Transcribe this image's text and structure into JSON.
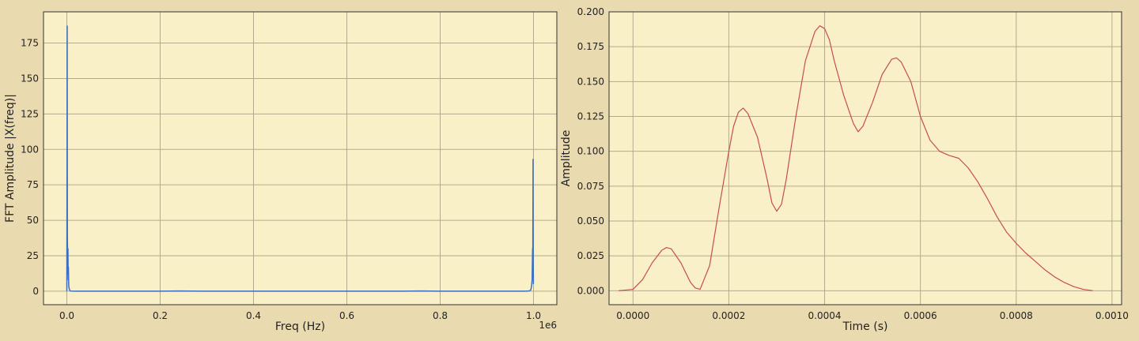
{
  "colors": {
    "figure_bg": "#e9dab0",
    "axes_bg": "#faf0c8",
    "grid": "#b3ab8c",
    "spine": "#333333",
    "fft_line": "#3c6fc4",
    "time_line": "#c44e52"
  },
  "chart_data": [
    {
      "type": "line",
      "xlabel": "Freq (Hz)",
      "ylabel": "FFT Amplitude |X(freq)|",
      "x_offset_label": "1e6",
      "grid": true,
      "xlim": [
        -0.05,
        1.05
      ],
      "ylim": [
        -9.5,
        197
      ],
      "xticks": [
        0.0,
        0.2,
        0.4,
        0.6,
        0.8,
        1.0
      ],
      "xtick_labels": [
        "0.0",
        "0.2",
        "0.4",
        "0.6",
        "0.8",
        "1.0"
      ],
      "yticks": [
        0,
        25,
        50,
        75,
        100,
        125,
        150,
        175
      ],
      "ytick_labels": [
        "0",
        "25",
        "50",
        "75",
        "100",
        "125",
        "150",
        "175"
      ],
      "series": [
        {
          "x": [
            0.0,
            0.0008,
            0.001,
            0.0012,
            0.0016,
            0.002,
            0.0024,
            0.003,
            0.0034,
            0.004,
            0.0044,
            0.005,
            0.0054,
            0.006,
            0.0064,
            0.007,
            0.008,
            0.01,
            0.02,
            0.1,
            0.2,
            0.24,
            0.3,
            0.4,
            0.5,
            0.6,
            0.7,
            0.76,
            0.8,
            0.9,
            0.98,
            0.99,
            0.993,
            0.994,
            0.995,
            0.996,
            0.997,
            0.998,
            0.9984,
            0.999,
            0.9992,
            0.9995,
            0.9998
          ],
          "y": [
            0,
            187,
            90,
            40,
            28,
            12,
            30,
            8,
            17,
            5,
            3,
            2,
            1.5,
            1,
            0.5,
            0.3,
            0.2,
            0.1,
            0,
            0,
            0,
            0.2,
            0,
            0,
            0,
            0,
            0,
            0.2,
            0,
            0,
            0,
            0.2,
            0.5,
            1,
            2,
            4,
            8,
            30,
            14,
            93,
            45,
            20,
            5
          ]
        }
      ]
    },
    {
      "type": "line",
      "xlabel": "Time (s)",
      "ylabel": "Amplitude",
      "grid": true,
      "xlim": [
        -5e-05,
        0.00102
      ],
      "ylim": [
        -0.01,
        0.2
      ],
      "xticks": [
        0.0,
        0.0002,
        0.0004,
        0.0006,
        0.0008,
        0.001
      ],
      "xtick_labels": [
        "0.0000",
        "0.0002",
        "0.0004",
        "0.0006",
        "0.0008",
        "0.0010"
      ],
      "yticks": [
        0.0,
        0.025,
        0.05,
        0.075,
        0.1,
        0.125,
        0.15,
        0.175,
        0.2
      ],
      "ytick_labels": [
        "0.000",
        "0.025",
        "0.050",
        "0.075",
        "0.100",
        "0.125",
        "0.150",
        "0.175",
        "0.200"
      ],
      "series": [
        {
          "x": [
            -3e-05,
            0.0,
            2e-05,
            4e-05,
            6e-05,
            7e-05,
            8e-05,
            0.0001,
            0.00012,
            0.00013,
            0.00014,
            0.00016,
            0.00018,
            0.0002,
            0.00021,
            0.00022,
            0.00023,
            0.00024,
            0.00026,
            0.00028,
            0.00029,
            0.0003,
            0.00031,
            0.00032,
            0.00034,
            0.00036,
            0.00038,
            0.00039,
            0.0004,
            0.00041,
            0.00042,
            0.00044,
            0.00046,
            0.00047,
            0.00048,
            0.0005,
            0.00052,
            0.00054,
            0.00055,
            0.00056,
            0.00058,
            0.0006,
            0.00062,
            0.00064,
            0.00066,
            0.00068,
            0.0007,
            0.00072,
            0.00074,
            0.00076,
            0.00078,
            0.0008,
            0.00082,
            0.00084,
            0.00086,
            0.00088,
            0.0009,
            0.00092,
            0.00094,
            0.00096
          ],
          "y": [
            0.0,
            0.001,
            0.008,
            0.02,
            0.029,
            0.031,
            0.03,
            0.02,
            0.006,
            0.002,
            0.001,
            0.018,
            0.06,
            0.1,
            0.118,
            0.128,
            0.131,
            0.127,
            0.11,
            0.08,
            0.063,
            0.057,
            0.062,
            0.08,
            0.125,
            0.165,
            0.186,
            0.19,
            0.188,
            0.18,
            0.165,
            0.14,
            0.12,
            0.114,
            0.118,
            0.135,
            0.155,
            0.166,
            0.167,
            0.164,
            0.15,
            0.125,
            0.108,
            0.1,
            0.097,
            0.095,
            0.088,
            0.078,
            0.066,
            0.053,
            0.042,
            0.034,
            0.027,
            0.021,
            0.015,
            0.01,
            0.006,
            0.003,
            0.001,
            0.0
          ]
        }
      ]
    }
  ]
}
